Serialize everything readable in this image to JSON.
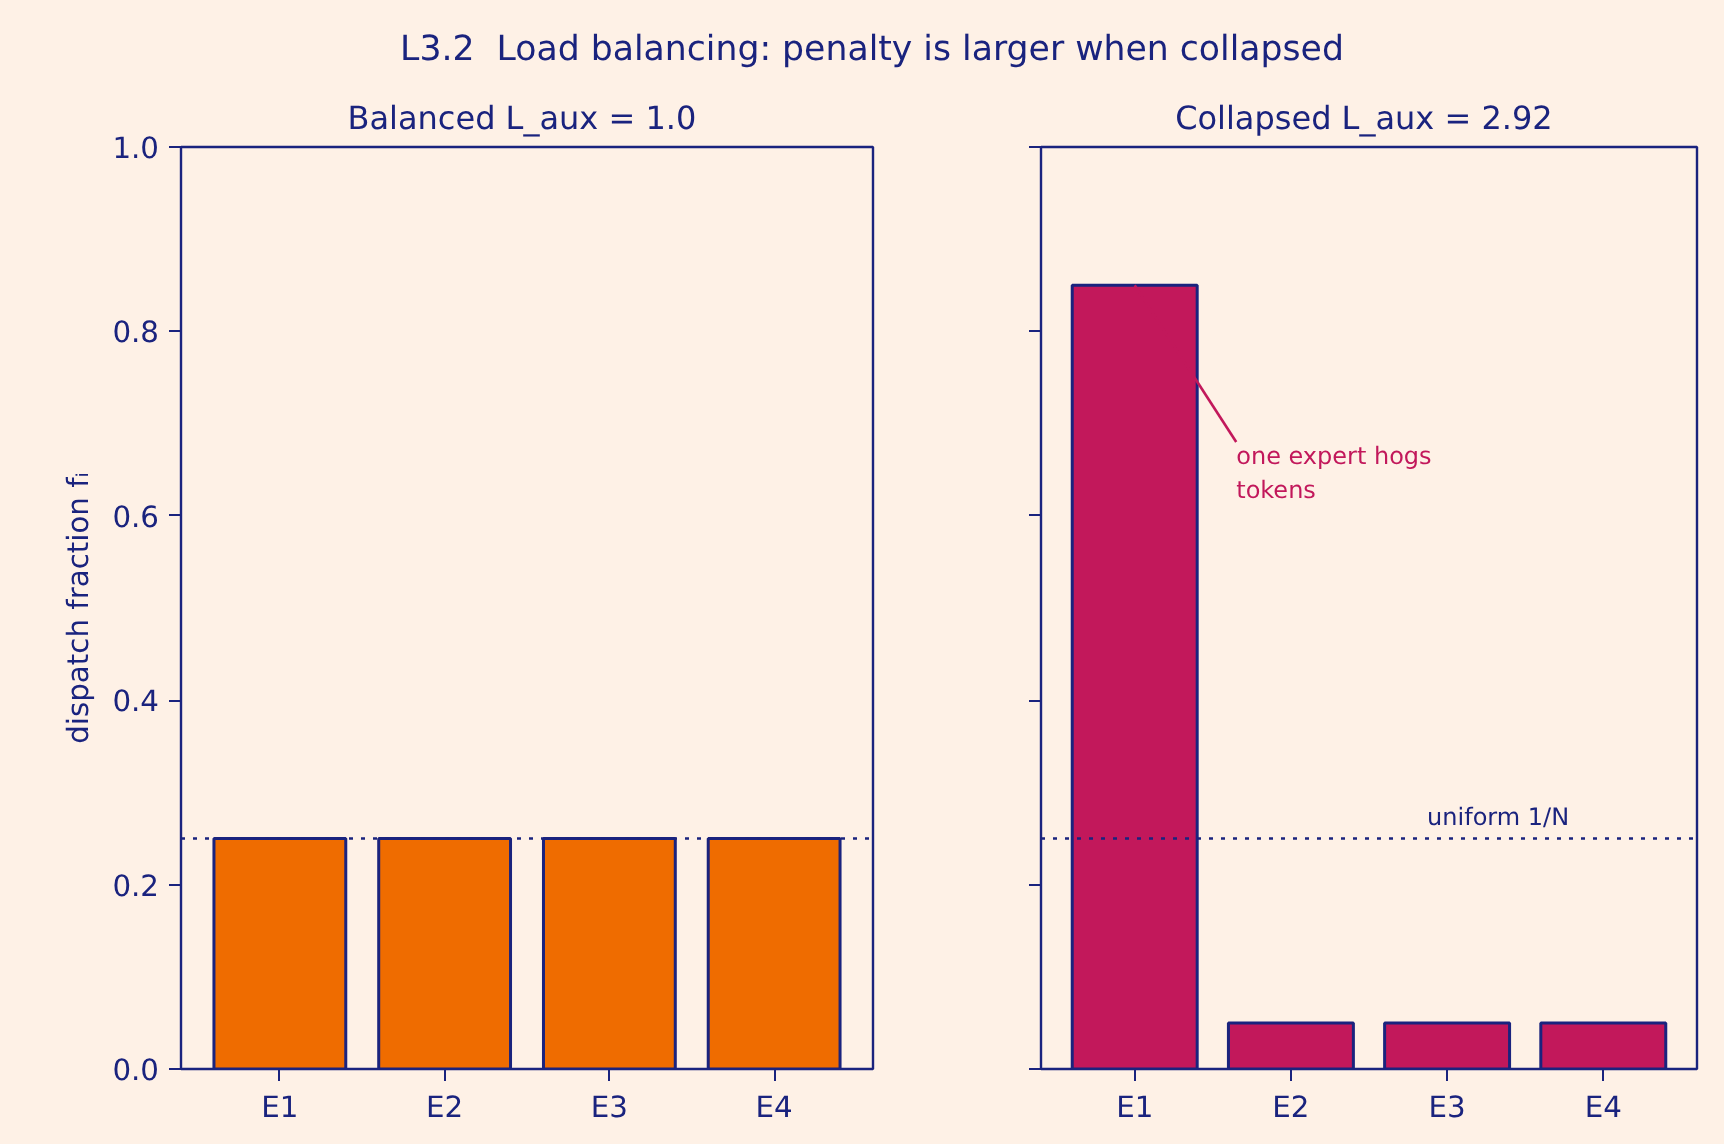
{
  "chart_data": [
    {
      "type": "bar",
      "title": "Balanced  L_aux = 1.0",
      "annotations": [
        "L3.2  Load balancing: penalty is larger when collapsed"
      ],
      "ylabel": "dispatch fraction fᵢ",
      "categories": [
        "E1",
        "E2",
        "E3",
        "E4"
      ],
      "series": [
        {
          "color": "#ef6c00",
          "values": [
            0.25,
            0.25,
            0.25,
            0.25
          ]
        }
      ],
      "ylim": [
        0,
        1
      ],
      "yticks": [
        {
          "value": 0,
          "label": "0.0"
        },
        {
          "value": 0.2,
          "label": "0.2"
        },
        {
          "value": 0.4,
          "label": "0.4"
        },
        {
          "value": 0.6,
          "label": "0.6"
        },
        {
          "value": 0.8,
          "label": "0.8"
        },
        {
          "value": 1,
          "label": "1.0"
        }
      ],
      "ref_lines": [
        {
          "axis": "y",
          "value": 0.25,
          "color": "#1a237e",
          "line_style": "dotted"
        }
      ],
      "grid": false
    },
    {
      "type": "bar",
      "title": "Collapsed  L_aux = 2.92",
      "categories": [
        "E1",
        "E2",
        "E3",
        "E4"
      ],
      "series": [
        {
          "color": "#c2185b",
          "values": [
            0.85,
            0.05,
            0.05,
            0.05
          ]
        }
      ],
      "ylim": [
        0,
        1
      ],
      "yticks": [
        {
          "value": 0,
          "label": null
        },
        {
          "value": 0.2,
          "label": null
        },
        {
          "value": 0.4,
          "label": null
        },
        {
          "value": 0.6,
          "label": null
        },
        {
          "value": 0.8,
          "label": null
        },
        {
          "value": 1,
          "label": null
        }
      ],
      "ref_lines": [
        {
          "axis": "y",
          "value": 0.25,
          "label": "uniform 1/N",
          "color": "#1a237e",
          "line_style": "dotted"
        }
      ],
      "annotations": [
        {
          "text": "one expert hogs\ntokens",
          "x": "E1",
          "y": 0.85
        }
      ],
      "tick_labels": "x",
      "grid": false
    }
  ]
}
